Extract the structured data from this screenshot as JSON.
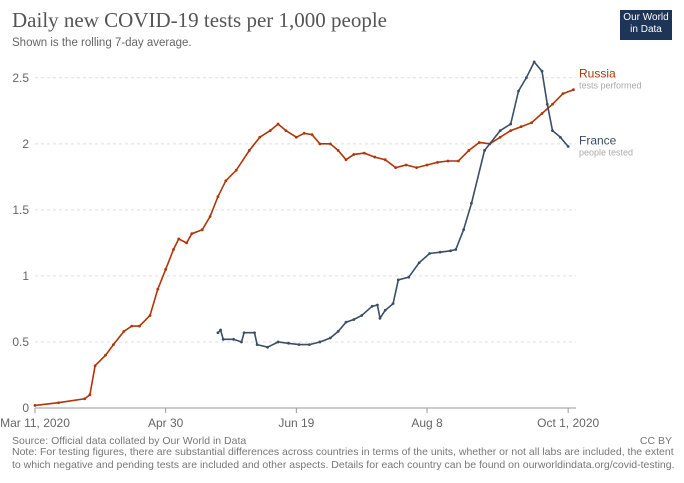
{
  "chart_data": {
    "type": "line",
    "title": "Daily new COVID-19 tests per 1,000 people",
    "subtitle": "Shown is the rolling 7-day average.",
    "logo": "Our World in Data",
    "source": "Source: Official data collated by Our World in Data",
    "license": "CC BY",
    "note": "Note: For testing figures, there are substantial differences across countries in terms of the units, whether or not all labs are included, the extent to which negative and pending tests are included and other aspects. Details for each country can be found on ourworldindata.org/covid-testing.",
    "xlim": [
      "2020-03-11",
      "2020-10-04"
    ],
    "xticks": [
      {
        "value": "2020-03-11",
        "label": "Mar 11, 2020"
      },
      {
        "value": "2020-04-30",
        "label": "Apr 30"
      },
      {
        "value": "2020-06-19",
        "label": "Jun 19"
      },
      {
        "value": "2020-08-08",
        "label": "Aug 8"
      },
      {
        "value": "2020-10-01",
        "label": "Oct 1, 2020"
      }
    ],
    "ylim": [
      0,
      2.65
    ],
    "yticks": [
      0,
      0.5,
      1,
      1.5,
      2,
      2.5
    ],
    "grid": true,
    "series": [
      {
        "name": "Russia",
        "sublabel": "tests performed",
        "color": "#b13507",
        "x": [
          "2020-03-11",
          "2020-03-20",
          "2020-03-30",
          "2020-04-01",
          "2020-04-03",
          "2020-04-07",
          "2020-04-10",
          "2020-04-14",
          "2020-04-17",
          "2020-04-20",
          "2020-04-24",
          "2020-04-27",
          "2020-04-30",
          "2020-05-03",
          "2020-05-05",
          "2020-05-08",
          "2020-05-10",
          "2020-05-14",
          "2020-05-17",
          "2020-05-20",
          "2020-05-23",
          "2020-05-27",
          "2020-06-01",
          "2020-06-05",
          "2020-06-09",
          "2020-06-12",
          "2020-06-15",
          "2020-06-19",
          "2020-06-22",
          "2020-06-25",
          "2020-06-28",
          "2020-07-02",
          "2020-07-05",
          "2020-07-08",
          "2020-07-11",
          "2020-07-15",
          "2020-07-19",
          "2020-07-23",
          "2020-07-27",
          "2020-07-31",
          "2020-08-04",
          "2020-08-08",
          "2020-08-12",
          "2020-08-16",
          "2020-08-20",
          "2020-08-24",
          "2020-08-28",
          "2020-09-01",
          "2020-09-05",
          "2020-09-09",
          "2020-09-13",
          "2020-09-17",
          "2020-09-21",
          "2020-09-25",
          "2020-09-29",
          "2020-10-03"
        ],
        "values": [
          0.02,
          0.04,
          0.07,
          0.1,
          0.32,
          0.4,
          0.48,
          0.58,
          0.62,
          0.62,
          0.7,
          0.9,
          1.05,
          1.2,
          1.28,
          1.25,
          1.32,
          1.35,
          1.45,
          1.6,
          1.72,
          1.8,
          1.95,
          2.05,
          2.1,
          2.15,
          2.1,
          2.05,
          2.08,
          2.07,
          2.0,
          2.0,
          1.95,
          1.88,
          1.92,
          1.93,
          1.9,
          1.88,
          1.82,
          1.84,
          1.82,
          1.84,
          1.86,
          1.87,
          1.87,
          1.95,
          2.01,
          2.0,
          2.05,
          2.1,
          2.13,
          2.16,
          2.23,
          2.3,
          2.38,
          2.41
        ]
      },
      {
        "name": "France",
        "sublabel": "people tested",
        "color": "#3c4e66",
        "x": [
          "2020-05-20",
          "2020-05-21",
          "2020-05-22",
          "2020-05-26",
          "2020-05-29",
          "2020-05-30",
          "2020-06-03",
          "2020-06-04",
          "2020-06-08",
          "2020-06-12",
          "2020-06-16",
          "2020-06-20",
          "2020-06-24",
          "2020-06-28",
          "2020-07-02",
          "2020-07-05",
          "2020-07-08",
          "2020-07-11",
          "2020-07-14",
          "2020-07-18",
          "2020-07-20",
          "2020-07-21",
          "2020-07-23",
          "2020-07-26",
          "2020-07-28",
          "2020-08-01",
          "2020-08-05",
          "2020-08-09",
          "2020-08-13",
          "2020-08-17",
          "2020-08-19",
          "2020-08-22",
          "2020-08-25",
          "2020-08-30",
          "2020-09-05",
          "2020-09-09",
          "2020-09-12",
          "2020-09-15",
          "2020-09-18",
          "2020-09-21",
          "2020-09-23",
          "2020-09-25",
          "2020-09-28",
          "2020-10-01"
        ],
        "values": [
          0.57,
          0.59,
          0.52,
          0.52,
          0.5,
          0.57,
          0.57,
          0.48,
          0.46,
          0.5,
          0.49,
          0.48,
          0.48,
          0.5,
          0.53,
          0.58,
          0.65,
          0.67,
          0.7,
          0.77,
          0.78,
          0.68,
          0.74,
          0.79,
          0.97,
          0.99,
          1.1,
          1.17,
          1.18,
          1.19,
          1.2,
          1.35,
          1.55,
          1.95,
          2.1,
          2.15,
          2.4,
          2.5,
          2.62,
          2.55,
          2.3,
          2.1,
          2.05,
          1.98
        ]
      }
    ]
  }
}
